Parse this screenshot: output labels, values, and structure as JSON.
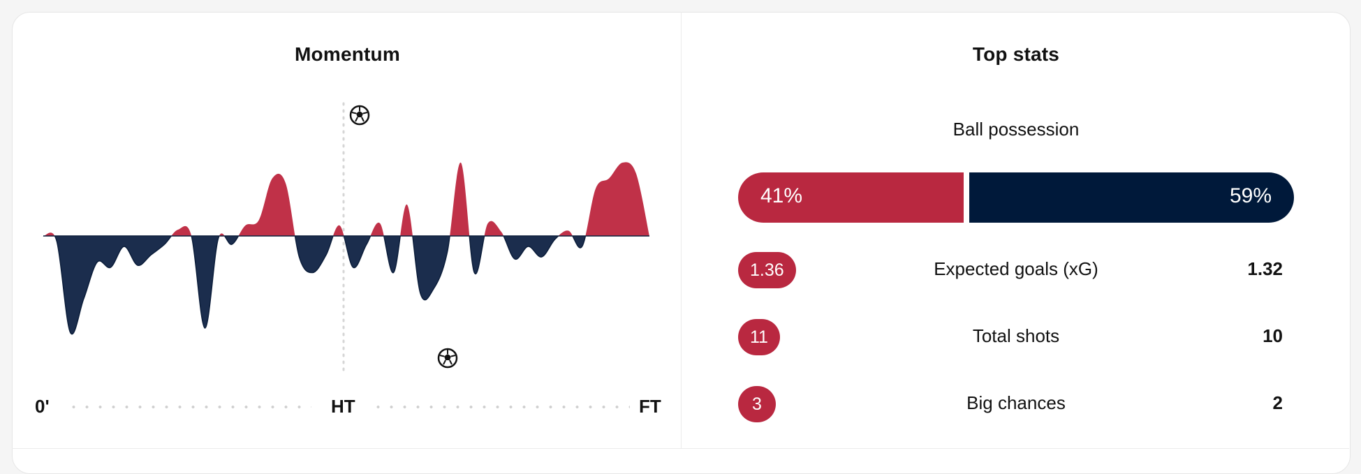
{
  "momentum": {
    "title": "Momentum",
    "axis": {
      "start": "0'",
      "half": "HT",
      "end": "FT"
    },
    "icons": {
      "home_goal": "soccer-ball-icon",
      "away_goal": "soccer-ball-icon"
    },
    "colors": {
      "home": "#c03148",
      "away": "#1b2d4d",
      "outline": "#0b1d3a"
    },
    "chart_data": {
      "type": "area",
      "x": [
        0,
        2,
        4,
        6,
        8,
        10,
        12,
        14,
        16,
        18,
        20,
        22,
        24,
        26,
        28,
        30,
        32,
        34,
        36,
        38,
        40,
        42,
        44,
        46,
        48,
        50,
        52,
        54,
        56,
        58,
        60,
        62,
        64,
        66,
        68,
        70,
        72,
        74,
        76,
        78,
        80,
        82,
        84,
        86,
        88,
        90
      ],
      "values": [
        0,
        -5,
        -92,
        -60,
        -25,
        -30,
        -10,
        -28,
        -18,
        -8,
        6,
        0,
        -88,
        -2,
        -8,
        10,
        15,
        55,
        50,
        -20,
        -35,
        -18,
        10,
        -30,
        -8,
        12,
        -35,
        30,
        -55,
        -50,
        -15,
        70,
        -35,
        12,
        4,
        -22,
        -10,
        -20,
        -3,
        5,
        -10,
        45,
        55,
        70,
        60,
        0
      ],
      "ylim": [
        -100,
        100
      ],
      "home_goal_minute": 47,
      "away_goal_minute": 60
    }
  },
  "top_stats": {
    "title": "Top stats",
    "possession": {
      "label": "Ball possession",
      "home": "41%",
      "away": "59%",
      "home_fraction": 0.41
    },
    "rows": [
      {
        "label": "Expected goals (xG)",
        "home": "1.36",
        "away": "1.32"
      },
      {
        "label": "Total shots",
        "home": "11",
        "away": "10"
      },
      {
        "label": "Big chances",
        "home": "3",
        "away": "2"
      }
    ],
    "colors": {
      "home": "#b92840",
      "away": "#00193a"
    }
  }
}
